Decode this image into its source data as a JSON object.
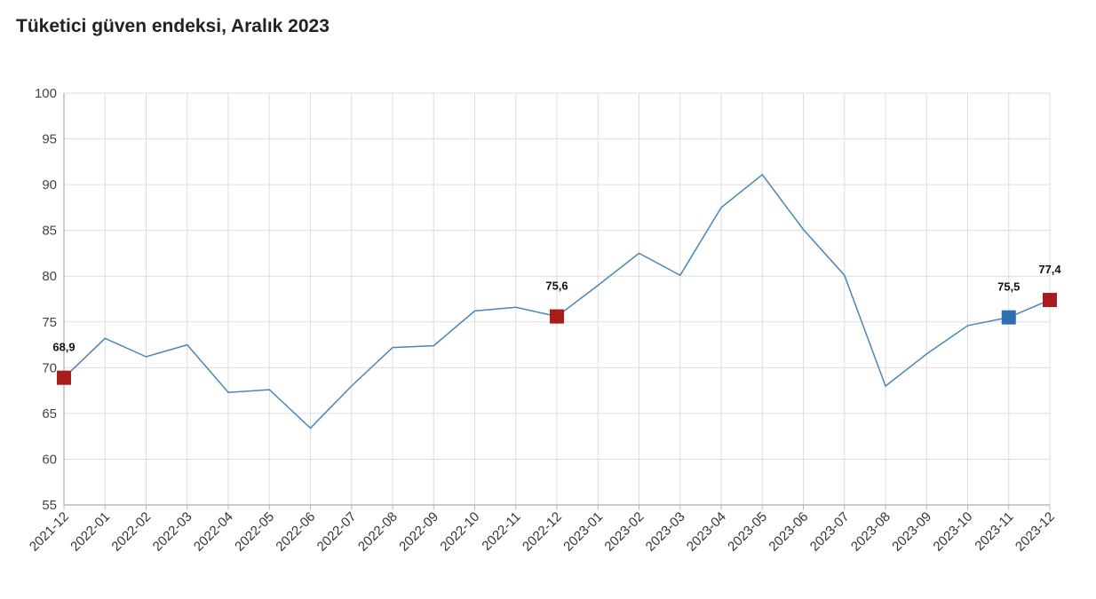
{
  "title": "Tüketici güven endeksi, Aralık 2023",
  "colors": {
    "line": "#4a86b8",
    "marker_red": "#a81c1c",
    "marker_blue": "#2f6fb0",
    "grid": "#dddddd"
  },
  "chart_data": {
    "type": "line",
    "title": "Tüketici güven endeksi, Aralık 2023",
    "xlabel": "",
    "ylabel": "",
    "ylim": [
      55,
      100
    ],
    "yticks": [
      55,
      60,
      65,
      70,
      75,
      80,
      85,
      90,
      95,
      100
    ],
    "grid": true,
    "categories": [
      "2021-12",
      "2022-01",
      "2022-02",
      "2022-03",
      "2022-04",
      "2022-05",
      "2022-06",
      "2022-07",
      "2022-08",
      "2022-09",
      "2022-10",
      "2022-11",
      "2022-12",
      "2023-01",
      "2023-02",
      "2023-03",
      "2023-04",
      "2023-05",
      "2023-06",
      "2023-07",
      "2023-08",
      "2023-09",
      "2023-10",
      "2023-11",
      "2023-12"
    ],
    "series": [
      {
        "values": [
          68.9,
          73.2,
          71.2,
          72.5,
          67.3,
          67.6,
          63.4,
          68.0,
          72.2,
          72.4,
          76.2,
          76.6,
          75.6,
          79.0,
          82.5,
          80.1,
          87.5,
          91.1,
          85.1,
          80.1,
          68.0,
          71.5,
          74.6,
          75.5,
          77.4
        ]
      }
    ],
    "highlights": [
      {
        "category": "2021-12",
        "label": "68,9",
        "color": "red"
      },
      {
        "category": "2022-12",
        "label": "75,6",
        "color": "red"
      },
      {
        "category": "2023-11",
        "label": "75,5",
        "color": "blue"
      },
      {
        "category": "2023-12",
        "label": "77,4",
        "color": "red"
      }
    ]
  }
}
